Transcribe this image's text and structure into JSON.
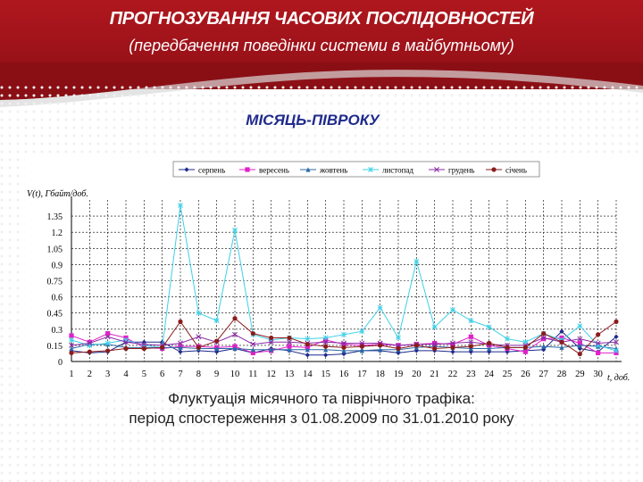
{
  "header": {
    "title": "ПРОГНОЗУВАННЯ ЧАСОВИХ ПОСЛІДОВНОСТЕЙ",
    "subtitle": "(передбачення поведінки системи в майбутньому)"
  },
  "section_title": "МІСЯЦЬ-ПІВРОКУ",
  "caption": {
    "line1": "Флуктуація місячного та піврічного трафіка:",
    "line2": "період спостереження з 01.08.2009 по 31.01.2010 року"
  },
  "colors": {
    "header_red": "#a3141b",
    "section_blue": "#1f2a8c"
  },
  "chart_data": {
    "type": "line",
    "ylabel": "V(t), Гбайт/доб.",
    "xlabel": "t, доб.",
    "ylim": [
      0,
      1.5
    ],
    "yticks": [
      0,
      0.15,
      0.3,
      0.45,
      0.6,
      0.75,
      0.9,
      1.05,
      1.2,
      1.35
    ],
    "ytick_labels": [
      "0",
      "0.15",
      "0.3",
      "0.45",
      "0.6",
      "0.75",
      "0.9",
      "1.05",
      "1.2",
      "1.35"
    ],
    "grid": true,
    "legend_position": "top",
    "x": [
      1,
      2,
      3,
      4,
      5,
      6,
      7,
      8,
      9,
      10,
      11,
      12,
      13,
      14,
      15,
      16,
      17,
      18,
      19,
      20,
      21,
      22,
      23,
      24,
      25,
      26,
      27,
      28,
      29,
      30,
      31
    ],
    "xtick_labels": [
      "1",
      "2",
      "3",
      "4",
      "5",
      "6",
      "7",
      "8",
      "9",
      "10",
      "11",
      "12",
      "13",
      "14",
      "15",
      "16",
      "17",
      "18",
      "19",
      "20",
      "21",
      "22",
      "23",
      "24",
      "25",
      "26",
      "27",
      "28",
      "29",
      "30"
    ],
    "series": [
      {
        "name": "серпень",
        "color": "#1f2a8c",
        "marker": "diamond",
        "values": [
          0.1,
          0.08,
          0.09,
          0.18,
          0.18,
          0.18,
          0.09,
          0.1,
          0.09,
          0.12,
          0.08,
          0.12,
          0.1,
          0.06,
          0.06,
          0.07,
          0.1,
          0.1,
          0.08,
          0.1,
          0.1,
          0.09,
          0.09,
          0.09,
          0.09,
          0.1,
          0.11,
          0.28,
          0.12,
          0.09,
          0.23
        ]
      },
      {
        "name": "вересень",
        "color": "#e020c8",
        "marker": "square",
        "values": [
          0.24,
          0.18,
          0.26,
          0.22,
          0.13,
          0.12,
          0.14,
          0.14,
          0.13,
          0.14,
          0.08,
          0.1,
          0.14,
          0.13,
          0.2,
          0.16,
          0.15,
          0.16,
          0.15,
          0.16,
          0.17,
          0.16,
          0.23,
          0.15,
          0.12,
          0.09,
          0.21,
          0.22,
          0.17,
          0.08,
          0.08
        ]
      },
      {
        "name": "жовтень",
        "color": "#2c6aa6",
        "marker": "triangle",
        "values": [
          0.12,
          0.16,
          0.16,
          0.13,
          0.13,
          0.13,
          0.13,
          0.12,
          0.12,
          0.12,
          0.11,
          0.11,
          0.11,
          0.11,
          0.11,
          0.1,
          0.1,
          0.11,
          0.11,
          0.13,
          0.14,
          0.13,
          0.12,
          0.12,
          0.13,
          0.13,
          0.14,
          0.13,
          0.15,
          0.14,
          0.12
        ]
      },
      {
        "name": "листопад",
        "color": "#3fd0e8",
        "marker": "star",
        "values": [
          0.2,
          0.15,
          0.17,
          0.2,
          0.15,
          0.13,
          1.45,
          0.45,
          0.38,
          1.22,
          0.25,
          0.2,
          0.22,
          0.21,
          0.22,
          0.25,
          0.28,
          0.5,
          0.22,
          0.93,
          0.32,
          0.48,
          0.38,
          0.32,
          0.21,
          0.18,
          0.26,
          0.2,
          0.33,
          0.15,
          0.1
        ]
      },
      {
        "name": "грудень",
        "color": "#8a2aa6",
        "marker": "x",
        "values": [
          0.15,
          0.17,
          0.23,
          0.18,
          0.16,
          0.15,
          0.17,
          0.23,
          0.18,
          0.25,
          0.16,
          0.18,
          0.18,
          0.17,
          0.18,
          0.17,
          0.17,
          0.17,
          0.15,
          0.16,
          0.16,
          0.17,
          0.18,
          0.16,
          0.15,
          0.15,
          0.22,
          0.18,
          0.21,
          0.17,
          0.18
        ]
      },
      {
        "name": "січень",
        "color": "#8a1c1c",
        "marker": "circle",
        "values": [
          0.08,
          0.09,
          0.1,
          0.12,
          0.12,
          0.13,
          0.37,
          0.13,
          0.19,
          0.4,
          0.26,
          0.22,
          0.22,
          0.16,
          0.14,
          0.13,
          0.14,
          0.15,
          0.12,
          0.15,
          0.12,
          0.13,
          0.14,
          0.17,
          0.13,
          0.13,
          0.26,
          0.18,
          0.07,
          0.25,
          0.37
        ]
      }
    ]
  }
}
